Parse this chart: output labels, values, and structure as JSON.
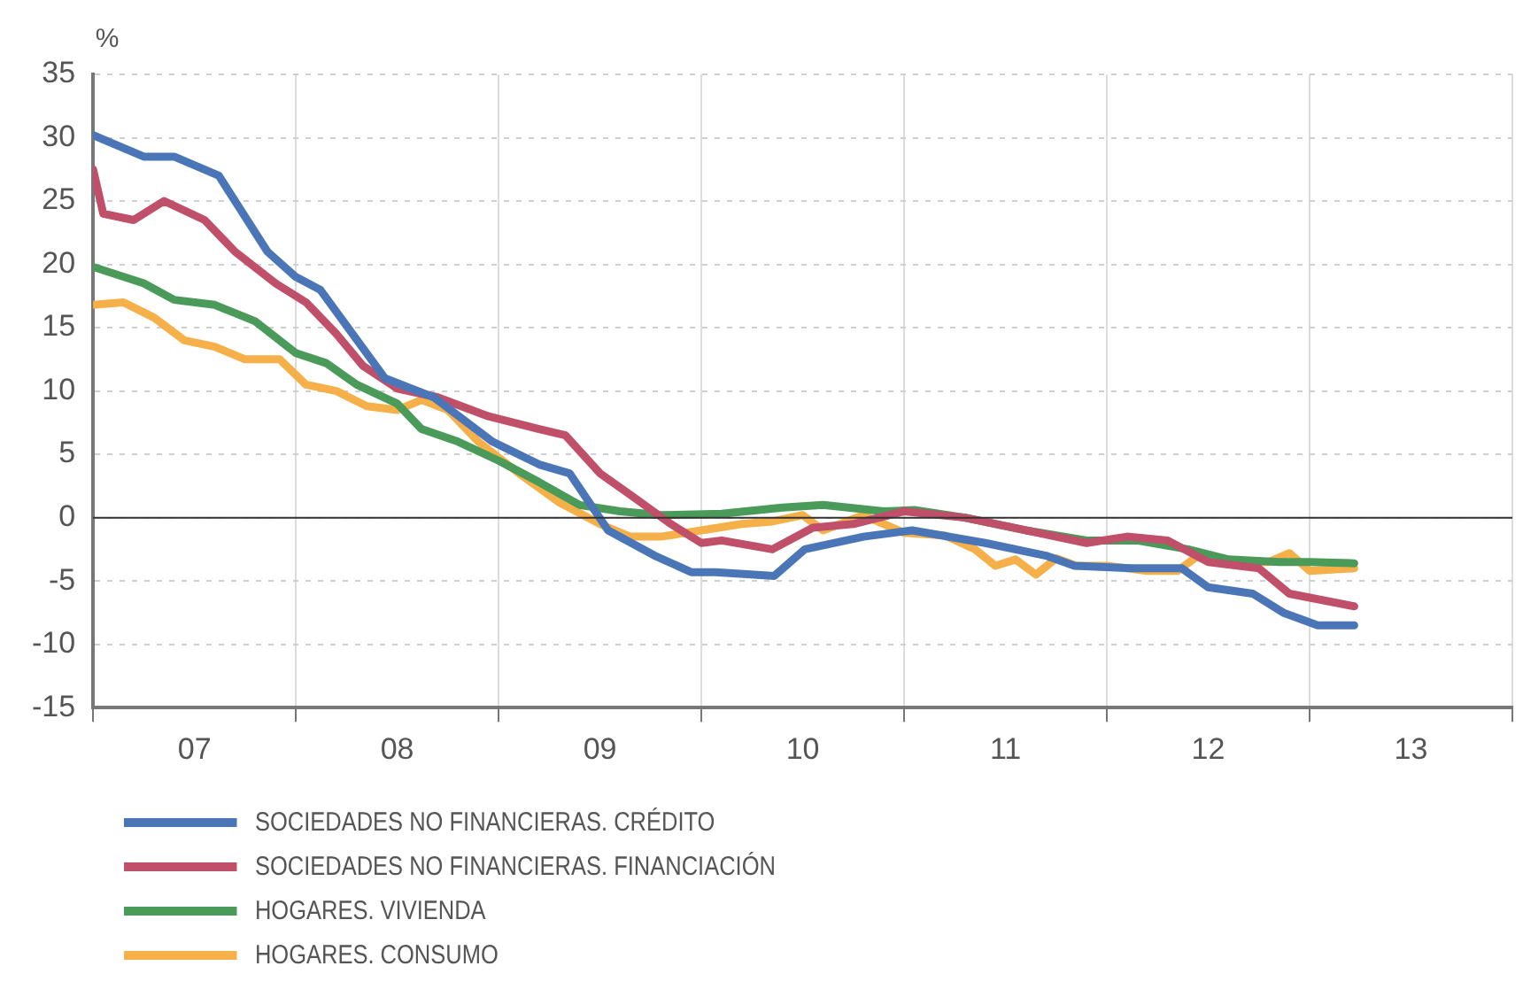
{
  "chart_data": {
    "type": "line",
    "ylabel": "%",
    "xlim": [
      6.5,
      13.5
    ],
    "xticks": [
      {
        "value": 6.5,
        "label": null
      },
      {
        "value": 7,
        "label": "07"
      },
      {
        "value": 7.5,
        "label": null
      },
      {
        "value": 8,
        "label": "08"
      },
      {
        "value": 8.5,
        "label": null
      },
      {
        "value": 9,
        "label": "09"
      },
      {
        "value": 9.5,
        "label": null
      },
      {
        "value": 10,
        "label": "10"
      },
      {
        "value": 10.5,
        "label": null
      },
      {
        "value": 11,
        "label": "11"
      },
      {
        "value": 11.5,
        "label": null
      },
      {
        "value": 12,
        "label": "12"
      },
      {
        "value": 12.5,
        "label": null
      },
      {
        "value": 13,
        "label": "13"
      },
      {
        "value": 13.5,
        "label": null
      }
    ],
    "ylim": [
      -15,
      35
    ],
    "yticks": [
      -15,
      -10,
      -5,
      0,
      5,
      10,
      15,
      20,
      25,
      30,
      35
    ],
    "grid": true,
    "legend": "bottom left",
    "marker": "none",
    "line_style": "solid",
    "ref_lines": [
      {
        "axis": "y",
        "value": 0,
        "color": "#333333"
      }
    ],
    "series": [
      {
        "name": "SOCIEDADES NO FINANCIERAS. CRÉDITO",
        "color": "#4a76b8",
        "x": [
          6.5,
          6.75,
          6.9,
          7.12,
          7.36,
          7.5,
          7.62,
          7.94,
          8.18,
          8.47,
          8.7,
          8.85,
          9.04,
          9.27,
          9.45,
          9.57,
          9.86,
          10.01,
          10.3,
          10.54,
          10.9,
          11.2,
          11.34,
          11.63,
          11.87,
          12.0,
          12.22,
          12.37,
          12.54,
          12.72
        ],
        "values": [
          30.2,
          28.5,
          28.5,
          27,
          21,
          19,
          18,
          11,
          9.5,
          6,
          4.2,
          3.5,
          -1,
          -3,
          -4.3,
          -4.3,
          -4.6,
          -2.5,
          -1.5,
          -1,
          -2,
          -3,
          -3.8,
          -4,
          -4,
          -5.5,
          -6,
          -7.5,
          -8.5,
          -8.5
        ]
      },
      {
        "name": "SOCIEDADES NO FINANCIERAS. FINANCIACIÓN",
        "color": "#c0506a",
        "x": [
          6.5,
          6.55,
          6.7,
          6.85,
          7.05,
          7.2,
          7.4,
          7.55,
          7.7,
          7.83,
          8.0,
          8.2,
          8.45,
          8.7,
          8.83,
          9.0,
          9.15,
          9.35,
          9.5,
          9.6,
          9.85,
          10.05,
          10.25,
          10.5,
          10.8,
          11.1,
          11.4,
          11.6,
          11.8,
          12.0,
          12.25,
          12.4,
          12.72
        ],
        "values": [
          27.5,
          24,
          23.5,
          25,
          23.5,
          21,
          18.5,
          17,
          14.5,
          12,
          10.2,
          9.5,
          8,
          7,
          6.5,
          3.5,
          1.8,
          -0.5,
          -2,
          -1.8,
          -2.5,
          -0.8,
          -0.5,
          0.5,
          0,
          -1,
          -2,
          -1.5,
          -1.8,
          -3.5,
          -4,
          -6,
          -7
        ]
      },
      {
        "name": "HOGARES. VIVIENDA",
        "color": "#4a9a5a",
        "x": [
          6.5,
          6.75,
          6.9,
          7.1,
          7.3,
          7.5,
          7.65,
          7.8,
          8.0,
          8.12,
          8.3,
          8.5,
          8.7,
          8.9,
          9.1,
          9.3,
          9.6,
          9.9,
          10.1,
          10.4,
          10.55,
          10.8,
          11.1,
          11.4,
          11.65,
          11.9,
          12.1,
          12.35,
          12.5,
          12.72
        ],
        "values": [
          19.8,
          18.5,
          17.2,
          16.8,
          15.5,
          13,
          12.2,
          10.5,
          9,
          7,
          6,
          4.5,
          2.8,
          1,
          0.5,
          0.2,
          0.3,
          0.8,
          1,
          0.5,
          0.6,
          0,
          -1,
          -1.8,
          -1.8,
          -2.5,
          -3.3,
          -3.5,
          -3.5,
          -3.6
        ]
      },
      {
        "name": "HOGARES. CONSUMO",
        "color": "#f5b04a",
        "x": [
          6.5,
          6.65,
          6.8,
          6.95,
          7.1,
          7.25,
          7.42,
          7.55,
          7.7,
          7.85,
          8.0,
          8.12,
          8.25,
          8.4,
          8.6,
          8.8,
          9.0,
          9.15,
          9.3,
          9.5,
          9.7,
          9.85,
          10.0,
          10.1,
          10.3,
          10.5,
          10.7,
          10.85,
          10.95,
          11.05,
          11.15,
          11.25,
          11.35,
          11.5,
          11.7,
          11.85,
          11.95,
          12.1,
          12.3,
          12.4,
          12.5,
          12.72
        ],
        "values": [
          16.8,
          17,
          15.8,
          14,
          13.5,
          12.5,
          12.5,
          10.5,
          10,
          8.8,
          8.5,
          9.3,
          8.5,
          6,
          3.5,
          1.2,
          -0.5,
          -1.5,
          -1.5,
          -1,
          -0.5,
          -0.3,
          0.2,
          -1,
          0.2,
          -1.2,
          -1.4,
          -2.5,
          -3.8,
          -3.3,
          -4.5,
          -3.2,
          -3.8,
          -3.8,
          -4.2,
          -4.2,
          -3,
          -3.5,
          -3.5,
          -2.8,
          -4.2,
          -4
        ]
      }
    ]
  }
}
